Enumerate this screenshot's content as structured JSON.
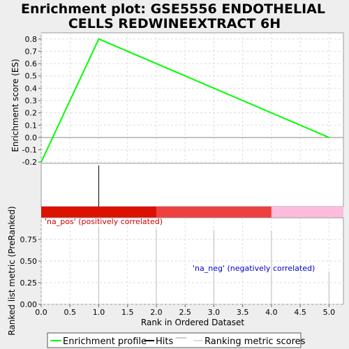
{
  "chart_data": {
    "type": "line",
    "title_lines": [
      "Enrichment plot: GSE5556 ENDOTHELIAL",
      "CELLS REDWINEEXTRACT 6H"
    ],
    "xlabel": "Rank in Ordered Dataset",
    "xlim": [
      0,
      5.25
    ],
    "x_ticks": [
      "0.0",
      "0.5",
      "1.0",
      "1.5",
      "2.0",
      "2.5",
      "3.0",
      "3.5",
      "4.0",
      "4.5",
      "5.0"
    ],
    "x_tick_values": [
      0,
      0.5,
      1,
      1.5,
      2,
      2.5,
      3,
      3.5,
      4,
      4.5,
      5
    ],
    "es_panel": {
      "ylabel": "Enrichment score (ES)",
      "ylim": [
        -0.21,
        0.85
      ],
      "y_ticks": [
        "-0.2",
        "-0.1",
        "0.0",
        "0.1",
        "0.2",
        "0.3",
        "0.4",
        "0.5",
        "0.6",
        "0.7",
        "0.8"
      ],
      "y_tick_values": [
        -0.2,
        -0.1,
        0,
        0.1,
        0.2,
        0.3,
        0.4,
        0.5,
        0.6,
        0.7,
        0.8
      ],
      "series": [
        {
          "name": "Enrichment profile",
          "color": "#00ff00",
          "x": [
            0,
            1,
            5
          ],
          "y": [
            -0.2,
            0.8,
            0.0
          ]
        }
      ],
      "zero_line": 0
    },
    "hits_panel": {
      "hits_x": [
        1
      ],
      "color": "#000000"
    },
    "color_bar": {
      "segments": [
        {
          "from": 0,
          "to": 2,
          "color": "#dd1100"
        },
        {
          "from": 2,
          "to": 4,
          "color": "#ee4040"
        },
        {
          "from": 4,
          "to": 5.25,
          "color": "#ffbbdd"
        }
      ]
    },
    "metric_panel": {
      "ylabel": "Ranked list metric (PreRanked)",
      "ylim": [
        0,
        1.0
      ],
      "y_ticks": [
        "0.00",
        "0.25",
        "0.50",
        "0.75"
      ],
      "y_tick_values": [
        0,
        0.25,
        0.5,
        0.75
      ],
      "bars": [
        {
          "x": 1,
          "value": 0.9
        },
        {
          "x": 2,
          "value": 0.87
        },
        {
          "x": 3,
          "value": 0.86
        },
        {
          "x": 4,
          "value": 0.85
        },
        {
          "x": 5,
          "value": 0.38
        }
      ],
      "pos_label": "'na_pos' (positively correlated)",
      "neg_label": "'na_neg' (negatively correlated)",
      "pos_color": "#cc0000",
      "neg_color": "#0000cc"
    },
    "legend": {
      "placement": "bottom",
      "entries": [
        {
          "label": "Enrichment profile",
          "color": "#00ff00"
        },
        {
          "label": "Hits",
          "color": "#000000"
        },
        {
          "label": "Ranking metric scores",
          "color": "#bbbbbb"
        }
      ]
    },
    "grid": true
  }
}
